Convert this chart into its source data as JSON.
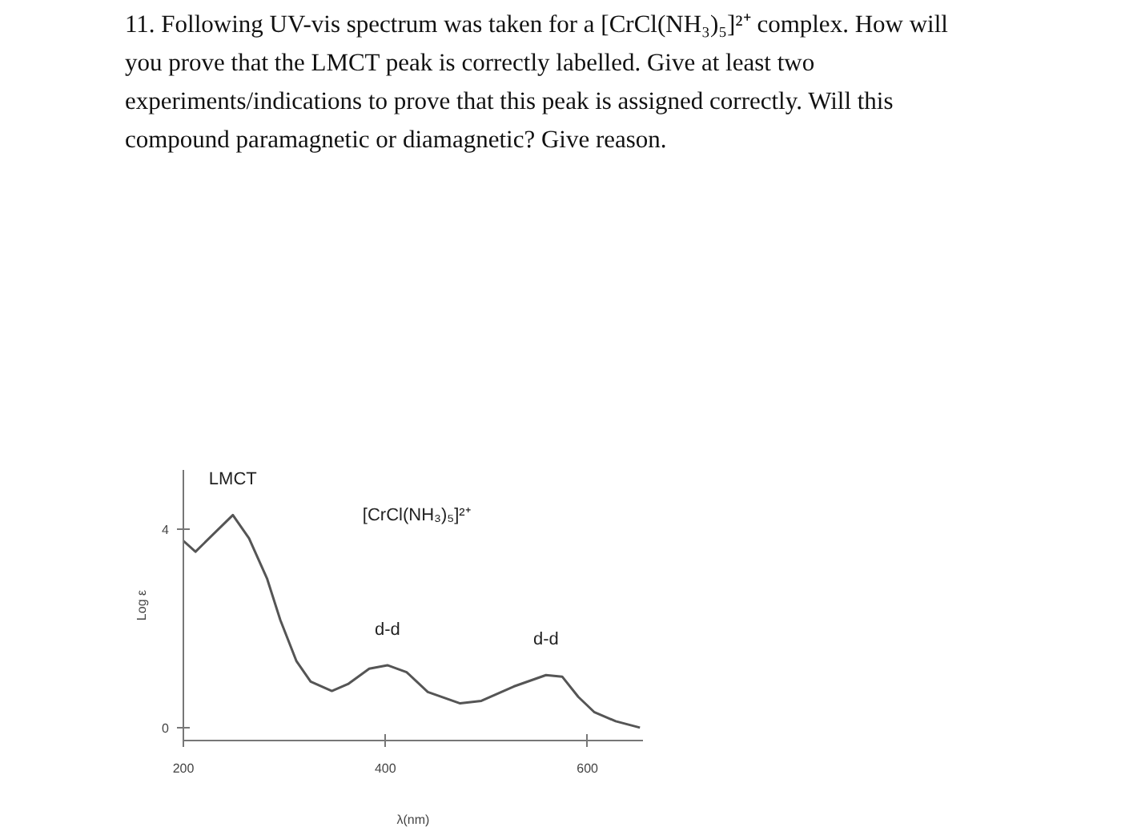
{
  "chart_data": {
    "type": "line",
    "title": "11. Following UV-vis spectrum was taken for a [CrCl(NH₃)₅]²⁺ complex.  How will you prove that the LMCT peak is correctly labelled. Give at least two experiments/indications to prove that this peak is assigned correctly.  Will this compound paramagnetic or diamagnetic? Give reason.",
    "xlabel": "λ(nm)",
    "ylabel": "Log ε",
    "x": [
      200,
      212,
      249,
      265,
      283,
      296,
      312,
      326,
      347,
      363,
      384,
      402,
      421,
      442,
      474,
      495,
      527,
      559,
      575,
      591,
      607,
      628,
      652
    ],
    "series": [
      {
        "color": "#555555",
        "values": [
          3.77,
          3.55,
          4.29,
          3.82,
          3.0,
          2.17,
          1.34,
          0.93,
          0.74,
          0.88,
          1.19,
          1.26,
          1.12,
          0.72,
          0.49,
          0.54,
          0.83,
          1.06,
          1.03,
          0.62,
          0.31,
          0.13,
          0.0
        ]
      }
    ],
    "xlim": [
      200,
      655
    ],
    "ylim": [
      -0.26,
      5.2
    ],
    "xticks": [
      200,
      400,
      600
    ],
    "yticks": [
      0,
      4
    ],
    "grid": false,
    "marker": "none",
    "line_style": "solid",
    "annotations": [
      {
        "text": "LMCT",
        "x": 249,
        "y": 4.29
      },
      "[CrCl(NH₃)₅]²⁺",
      {
        "text": "d-d",
        "x": 402,
        "y": 1.26
      },
      {
        "text": "d-d",
        "x": 559,
        "y": 1.06
      }
    ]
  }
}
